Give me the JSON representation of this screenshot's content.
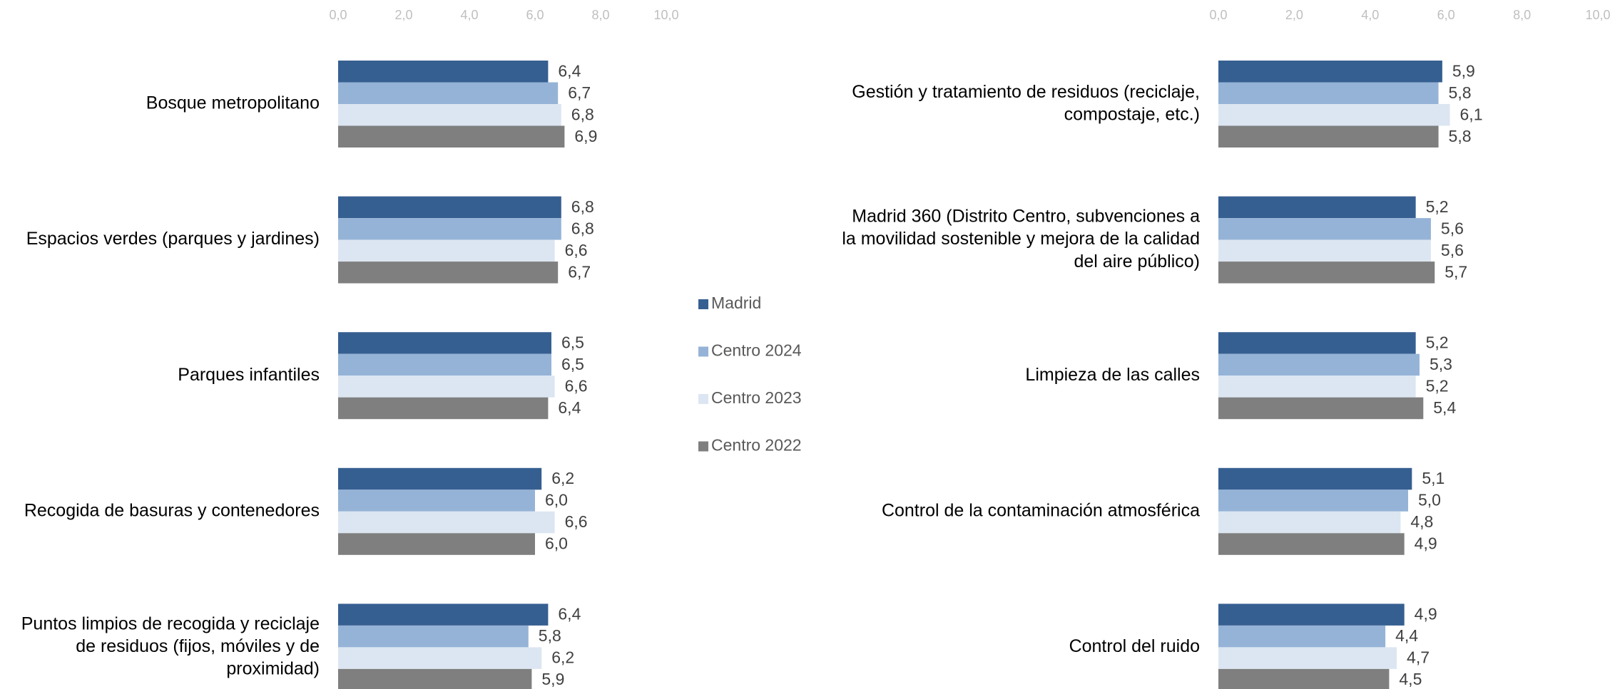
{
  "chart_data": [
    {
      "type": "bar",
      "categories": [
        [
          "Bosque metropolitano"
        ],
        [
          "Espacios verdes (parques y jardines)"
        ],
        [
          "Parques infantiles"
        ],
        [
          "Recogida de basuras y contenedores"
        ],
        [
          "Puntos limpios de recogida y reciclaje",
          "de residuos (fijos, móviles y de",
          "proximidad)"
        ]
      ],
      "series": [
        {
          "name": "Madrid",
          "color": "#365f91",
          "values": [
            6.4,
            6.8,
            6.5,
            6.2,
            6.4
          ],
          "value_labels": [
            "6,4",
            "6,8",
            "6,5",
            "6,2",
            "6,4"
          ]
        },
        {
          "name": "Centro 2024",
          "color": "#95b3d7",
          "values": [
            6.7,
            6.8,
            6.5,
            6.0,
            5.8
          ],
          "value_labels": [
            "6,7",
            "6,8",
            "6,5",
            "6,0",
            "5,8"
          ]
        },
        {
          "name": "Centro 2023",
          "color": "#dce6f2",
          "values": [
            6.8,
            6.6,
            6.6,
            6.6,
            6.2
          ],
          "value_labels": [
            "6,8",
            "6,6",
            "6,6",
            "6,6",
            "6,2"
          ]
        },
        {
          "name": "Centro 2022",
          "color": "#7f7f7f",
          "values": [
            6.9,
            6.7,
            6.4,
            6.0,
            5.9
          ],
          "value_labels": [
            "6,9",
            "6,7",
            "6,4",
            "6,0",
            "5,9"
          ]
        }
      ],
      "xlim": [
        0,
        10
      ],
      "xticks": [
        {
          "value": 0,
          "label": "0,0"
        },
        {
          "value": 2,
          "label": "2,0"
        },
        {
          "value": 4,
          "label": "4,0"
        },
        {
          "value": 6,
          "label": "6,0"
        },
        {
          "value": 8,
          "label": "8,0"
        },
        {
          "value": 10,
          "label": "10,0"
        }
      ]
    },
    {
      "type": "bar",
      "categories": [
        [
          "Gestión y tratamiento de residuos (reciclaje,",
          "compostaje, etc.)"
        ],
        [
          "Madrid 360 (Distrito Centro, subvenciones a",
          "la  movilidad sostenible y mejora de la calidad",
          "del  aire público)"
        ],
        [
          "Limpieza de las calles"
        ],
        [
          "Control de la contaminación atmosférica"
        ],
        [
          "Control del ruido"
        ]
      ],
      "series": [
        {
          "color": "#365f91",
          "values": [
            5.9,
            5.2,
            5.2,
            5.1,
            4.9
          ],
          "value_labels": [
            "5,9",
            "5,2",
            "5,2",
            "5,1",
            "4,9"
          ]
        },
        {
          "color": "#95b3d7",
          "values": [
            5.8,
            5.6,
            5.3,
            5.0,
            4.4
          ],
          "value_labels": [
            "5,8",
            "5,6",
            "5,3",
            "5,0",
            "4,4"
          ]
        },
        {
          "color": "#dce6f2",
          "values": [
            6.1,
            5.6,
            5.2,
            4.8,
            4.7
          ],
          "value_labels": [
            "6,1",
            "5,6",
            "5,2",
            "4,8",
            "4,7"
          ]
        },
        {
          "color": "#7f7f7f",
          "values": [
            5.8,
            5.7,
            5.4,
            4.9,
            4.5
          ],
          "value_labels": [
            "5,8",
            "5,7",
            "5,4",
            "4,9",
            "4,5"
          ]
        }
      ],
      "xlim": [
        0,
        10
      ],
      "xticks": [
        {
          "value": 0,
          "label": "0,0"
        },
        {
          "value": 2,
          "label": "2,0"
        },
        {
          "value": 4,
          "label": "4,0"
        },
        {
          "value": 6,
          "label": "6,0"
        },
        {
          "value": 8,
          "label": "8,0"
        },
        {
          "value": 10,
          "label": "10,0"
        }
      ]
    }
  ]
}
